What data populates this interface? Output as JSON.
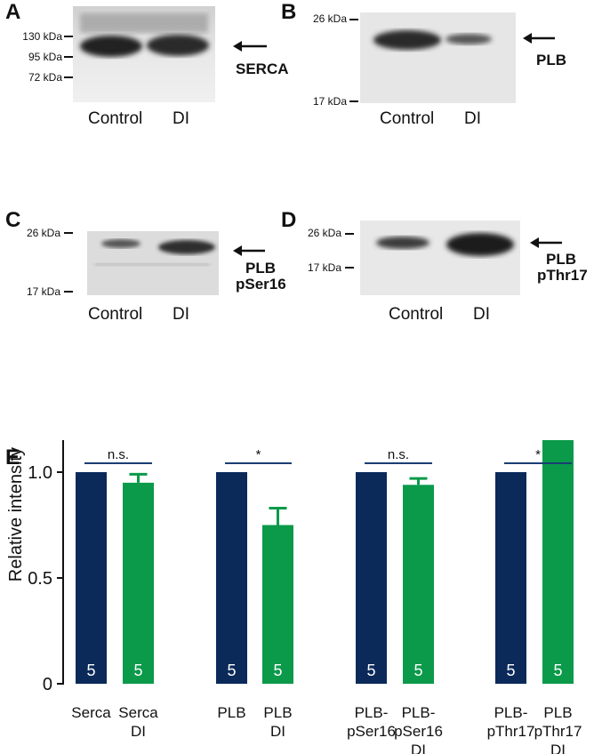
{
  "panels": {
    "A": {
      "letter": "A",
      "markers": [
        "130 kDa",
        "95 kDa",
        "72 kDa"
      ],
      "lanes": [
        "Control",
        "DI"
      ],
      "protein": "SERCA"
    },
    "B": {
      "letter": "B",
      "markers": [
        "26 kDa",
        "17 kDa"
      ],
      "lanes": [
        "Control",
        "DI"
      ],
      "protein": "PLB"
    },
    "C": {
      "letter": "C",
      "markers": [
        "26 kDa",
        "17 kDa"
      ],
      "lanes": [
        "Control",
        "DI"
      ],
      "protein_line1": "PLB",
      "protein_line2": "pSer16"
    },
    "D": {
      "letter": "D",
      "markers": [
        "26 kDa",
        "17 kDa"
      ],
      "lanes": [
        "Control",
        "DI"
      ],
      "protein_line1": "PLB",
      "protein_line2": "pThr17"
    },
    "E": {
      "letter": "E"
    }
  },
  "chart_data": {
    "type": "bar",
    "ylabel": "Relative intensity",
    "ylim": [
      0,
      1.6
    ],
    "yticks": [
      "0",
      "0.5",
      "1.0",
      "1.5"
    ],
    "grid": false,
    "categories": [
      [
        "Serca"
      ],
      [
        "Serca",
        "DI"
      ],
      [
        "PLB"
      ],
      [
        "PLB",
        "DI"
      ],
      [
        "PLB-",
        "pSer16"
      ],
      [
        "PLB-",
        "pSer16",
        "DI"
      ],
      [
        "PLB-",
        "pThr17"
      ],
      [
        "PLB",
        "pThr17",
        "DI"
      ]
    ],
    "values": [
      1.0,
      0.95,
      1.0,
      0.75,
      1.0,
      0.94,
      1.0,
      1.43
    ],
    "errors": [
      0,
      0.04,
      0,
      0.08,
      0,
      0.03,
      0,
      0.1
    ],
    "n_labels": [
      "5",
      "5",
      "5",
      "5",
      "5",
      "5",
      "5",
      "5"
    ],
    "groups": [
      "control",
      "di",
      "control",
      "di",
      "control",
      "di",
      "control",
      "di"
    ],
    "significance": [
      "n.s.",
      "*",
      "n.s.",
      "*"
    ],
    "colors": {
      "control": "#0b2a5a",
      "di": "#0a9a4a",
      "sig_line": "#1a3e73"
    }
  }
}
